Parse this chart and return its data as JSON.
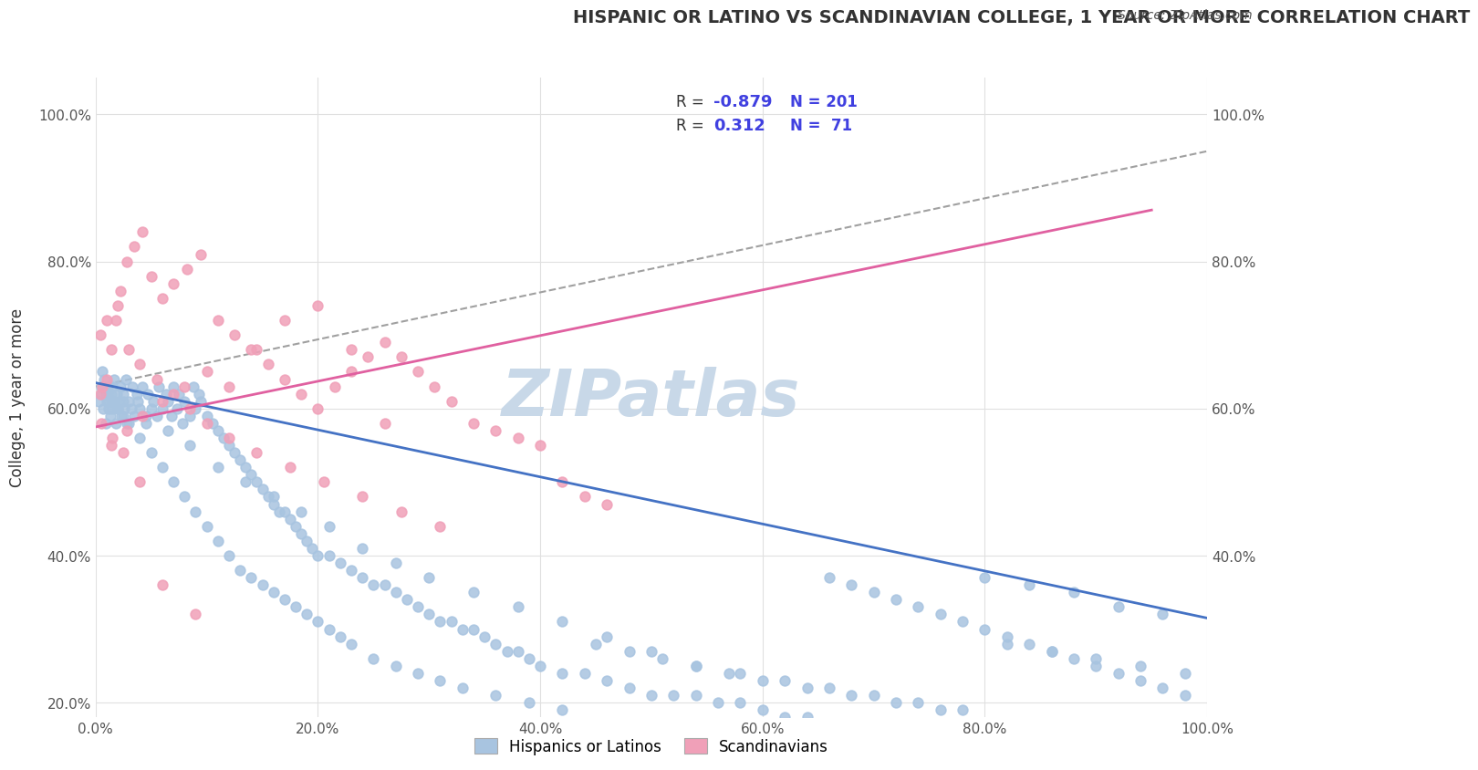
{
  "title": "HISPANIC OR LATINO VS SCANDINAVIAN COLLEGE, 1 YEAR OR MORE CORRELATION CHART",
  "source_text": "Source: ZipAtlas.com",
  "xlabel": "",
  "ylabel": "College, 1 year or more",
  "xticklabels": [
    "0.0%",
    "20.0%",
    "40.0%",
    "60.0%",
    "80.0%",
    "100.0%"
  ],
  "yticklabels": [
    "20.0%",
    "40.0%",
    "60.0%",
    "80.0%",
    "100.0%"
  ],
  "right_yticklabels": [
    "40.0%",
    "60.0%",
    "80.0%",
    "100.0%"
  ],
  "xlim": [
    0,
    1
  ],
  "ylim": [
    0.18,
    1.05
  ],
  "legend_r1": "R = -0.879",
  "legend_n1": "N = 201",
  "legend_r2": "R =  0.312",
  "legend_n2": "N =  71",
  "blue_color": "#a8c4e0",
  "pink_color": "#f0a0b8",
  "blue_line_color": "#4472c4",
  "pink_line_color": "#e060a0",
  "dashed_line_color": "#a0a0a0",
  "watermark_color": "#c8d8e8",
  "watermark_text": "ZIPatlas",
  "blue_r_color": "#4040e0",
  "note_blue": "R = -0.879   N = 201",
  "note_pink": "R =  0.312   N =  71",
  "blue_scatter_x": [
    0.003,
    0.005,
    0.006,
    0.007,
    0.008,
    0.008,
    0.009,
    0.01,
    0.01,
    0.011,
    0.012,
    0.012,
    0.013,
    0.014,
    0.015,
    0.015,
    0.016,
    0.017,
    0.018,
    0.019,
    0.02,
    0.021,
    0.022,
    0.023,
    0.025,
    0.026,
    0.027,
    0.028,
    0.03,
    0.032,
    0.033,
    0.035,
    0.037,
    0.038,
    0.04,
    0.042,
    0.045,
    0.047,
    0.05,
    0.052,
    0.055,
    0.057,
    0.06,
    0.063,
    0.065,
    0.068,
    0.07,
    0.073,
    0.075,
    0.078,
    0.08,
    0.085,
    0.088,
    0.09,
    0.093,
    0.095,
    0.1,
    0.105,
    0.11,
    0.115,
    0.12,
    0.125,
    0.13,
    0.135,
    0.14,
    0.145,
    0.15,
    0.155,
    0.16,
    0.165,
    0.17,
    0.175,
    0.18,
    0.185,
    0.19,
    0.195,
    0.2,
    0.21,
    0.22,
    0.23,
    0.24,
    0.25,
    0.26,
    0.27,
    0.28,
    0.29,
    0.3,
    0.31,
    0.32,
    0.33,
    0.34,
    0.35,
    0.36,
    0.37,
    0.38,
    0.39,
    0.4,
    0.42,
    0.44,
    0.46,
    0.48,
    0.5,
    0.52,
    0.54,
    0.56,
    0.58,
    0.6,
    0.62,
    0.64,
    0.66,
    0.68,
    0.7,
    0.72,
    0.74,
    0.76,
    0.78,
    0.8,
    0.82,
    0.84,
    0.86,
    0.88,
    0.9,
    0.92,
    0.94,
    0.96,
    0.98,
    0.01,
    0.015,
    0.02,
    0.025,
    0.03,
    0.04,
    0.05,
    0.06,
    0.07,
    0.08,
    0.09,
    0.1,
    0.11,
    0.12,
    0.13,
    0.14,
    0.15,
    0.16,
    0.17,
    0.18,
    0.19,
    0.2,
    0.21,
    0.22,
    0.23,
    0.25,
    0.27,
    0.29,
    0.31,
    0.33,
    0.36,
    0.39,
    0.42,
    0.45,
    0.48,
    0.51,
    0.54,
    0.57,
    0.6,
    0.64,
    0.68,
    0.72,
    0.76,
    0.8,
    0.84,
    0.88,
    0.92,
    0.96,
    0.005,
    0.025,
    0.045,
    0.065,
    0.085,
    0.11,
    0.135,
    0.16,
    0.185,
    0.21,
    0.24,
    0.27,
    0.3,
    0.34,
    0.38,
    0.42,
    0.46,
    0.5,
    0.54,
    0.58,
    0.62,
    0.66,
    0.7,
    0.74,
    0.78,
    0.82,
    0.86,
    0.9,
    0.94,
    0.98
  ],
  "blue_scatter_y": [
    0.61,
    0.62,
    0.65,
    0.6,
    0.63,
    0.64,
    0.58,
    0.62,
    0.61,
    0.63,
    0.6,
    0.61,
    0.59,
    0.62,
    0.6,
    0.63,
    0.61,
    0.64,
    0.58,
    0.62,
    0.6,
    0.61,
    0.63,
    0.59,
    0.62,
    0.6,
    0.64,
    0.58,
    0.61,
    0.6,
    0.63,
    0.59,
    0.62,
    0.61,
    0.6,
    0.63,
    0.58,
    0.62,
    0.6,
    0.61,
    0.59,
    0.63,
    0.6,
    0.62,
    0.61,
    0.59,
    0.63,
    0.6,
    0.62,
    0.58,
    0.61,
    0.59,
    0.63,
    0.6,
    0.62,
    0.61,
    0.59,
    0.58,
    0.57,
    0.56,
    0.55,
    0.54,
    0.53,
    0.52,
    0.51,
    0.5,
    0.49,
    0.48,
    0.47,
    0.46,
    0.46,
    0.45,
    0.44,
    0.43,
    0.42,
    0.41,
    0.4,
    0.4,
    0.39,
    0.38,
    0.37,
    0.36,
    0.36,
    0.35,
    0.34,
    0.33,
    0.32,
    0.31,
    0.31,
    0.3,
    0.3,
    0.29,
    0.28,
    0.27,
    0.27,
    0.26,
    0.25,
    0.24,
    0.24,
    0.23,
    0.22,
    0.21,
    0.21,
    0.21,
    0.2,
    0.2,
    0.19,
    0.18,
    0.18,
    0.37,
    0.36,
    0.35,
    0.34,
    0.33,
    0.32,
    0.31,
    0.3,
    0.29,
    0.28,
    0.27,
    0.26,
    0.25,
    0.24,
    0.23,
    0.22,
    0.21,
    0.62,
    0.61,
    0.6,
    0.59,
    0.58,
    0.56,
    0.54,
    0.52,
    0.5,
    0.48,
    0.46,
    0.44,
    0.42,
    0.4,
    0.38,
    0.37,
    0.36,
    0.35,
    0.34,
    0.33,
    0.32,
    0.31,
    0.3,
    0.29,
    0.28,
    0.26,
    0.25,
    0.24,
    0.23,
    0.22,
    0.21,
    0.2,
    0.19,
    0.28,
    0.27,
    0.26,
    0.25,
    0.24,
    0.23,
    0.22,
    0.21,
    0.2,
    0.19,
    0.37,
    0.36,
    0.35,
    0.33,
    0.32,
    0.63,
    0.61,
    0.59,
    0.57,
    0.55,
    0.52,
    0.5,
    0.48,
    0.46,
    0.44,
    0.41,
    0.39,
    0.37,
    0.35,
    0.33,
    0.31,
    0.29,
    0.27,
    0.25,
    0.24,
    0.23,
    0.22,
    0.21,
    0.2,
    0.19,
    0.28,
    0.27,
    0.26,
    0.25,
    0.24
  ],
  "pink_scatter_x": [
    0.004,
    0.006,
    0.01,
    0.014,
    0.018,
    0.022,
    0.028,
    0.035,
    0.042,
    0.05,
    0.06,
    0.07,
    0.082,
    0.095,
    0.11,
    0.125,
    0.14,
    0.155,
    0.17,
    0.185,
    0.2,
    0.215,
    0.23,
    0.245,
    0.26,
    0.275,
    0.29,
    0.305,
    0.32,
    0.34,
    0.36,
    0.38,
    0.4,
    0.42,
    0.44,
    0.46,
    0.014,
    0.028,
    0.042,
    0.06,
    0.08,
    0.1,
    0.12,
    0.145,
    0.17,
    0.2,
    0.23,
    0.26,
    0.004,
    0.01,
    0.02,
    0.03,
    0.04,
    0.055,
    0.07,
    0.085,
    0.1,
    0.12,
    0.145,
    0.175,
    0.205,
    0.24,
    0.275,
    0.31,
    0.005,
    0.015,
    0.025,
    0.04,
    0.06,
    0.09
  ],
  "pink_scatter_y": [
    0.62,
    0.63,
    0.64,
    0.68,
    0.72,
    0.76,
    0.8,
    0.82,
    0.84,
    0.78,
    0.75,
    0.77,
    0.79,
    0.81,
    0.72,
    0.7,
    0.68,
    0.66,
    0.64,
    0.62,
    0.6,
    0.63,
    0.65,
    0.67,
    0.69,
    0.67,
    0.65,
    0.63,
    0.61,
    0.58,
    0.57,
    0.56,
    0.55,
    0.5,
    0.48,
    0.47,
    0.55,
    0.57,
    0.59,
    0.61,
    0.63,
    0.65,
    0.63,
    0.68,
    0.72,
    0.74,
    0.68,
    0.58,
    0.7,
    0.72,
    0.74,
    0.68,
    0.66,
    0.64,
    0.62,
    0.6,
    0.58,
    0.56,
    0.54,
    0.52,
    0.5,
    0.48,
    0.46,
    0.44,
    0.58,
    0.56,
    0.54,
    0.5,
    0.36,
    0.32
  ],
  "blue_line_x": [
    0.0,
    1.0
  ],
  "blue_line_y_start": 0.635,
  "blue_line_y_end": 0.315,
  "pink_line_x": [
    0.0,
    0.95
  ],
  "pink_line_y_start": 0.575,
  "pink_line_y_end": 0.87,
  "dashed_line_x": [
    0.0,
    1.0
  ],
  "dashed_line_y_start": 0.63,
  "dashed_line_y_end": 0.95
}
